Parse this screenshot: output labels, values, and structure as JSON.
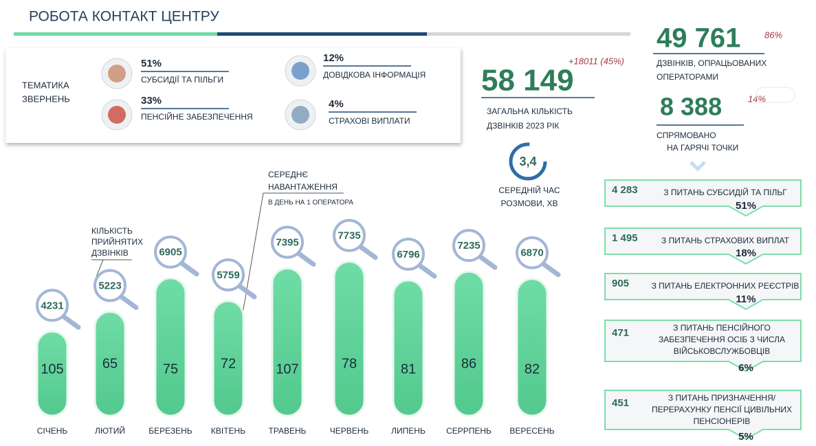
{
  "header": {
    "title": "РОБОТА КОНТАКТ ЦЕНТРУ"
  },
  "topics": {
    "label": [
      "ТЕМАТИКА",
      "ЗВЕРНЕНЬ"
    ],
    "items": [
      {
        "percent": "51%",
        "label": "СУБСИДІЇ ТА ПІЛЬГИ"
      },
      {
        "percent": "33%",
        "label": "ПЕНСІЙНЕ ЗАБЕЗПЕЧЕННЯ"
      },
      {
        "percent": "12%",
        "label": "ДОВІДКОВА ІНФОРМАЦІЯ"
      },
      {
        "percent": "4%",
        "label": "СТРАХОВІ ВИПЛАТИ"
      }
    ]
  },
  "total": {
    "change": "+18011 (45%)",
    "value": "58 149",
    "caption": [
      "ЗАГАЛЬНА КІЛЬКІСТЬ",
      "ДЗВІНКІВ  2023 РІК"
    ]
  },
  "avg_talk": {
    "value": "3,4",
    "caption": [
      "СЕРЕДНІЙ ЧАС",
      "РОЗМОВИ, ХВ"
    ]
  },
  "operators": {
    "value": "49 761",
    "share": "86%",
    "caption": [
      "ДЗВІНКІВ,  ОПРАЦЬОВАНИХ",
      "ОПЕРАТОРАМИ"
    ]
  },
  "hotspots": {
    "value": "8 388",
    "share": "14%",
    "caption": [
      "СПРЯМОВАНО",
      "НА ГАРЯЧІ ТОЧКИ"
    ],
    "items": [
      {
        "value": "4 283",
        "text": [
          "З ПИТАНЬ СУБСИДІЙ ТА ПІЛЬГ"
        ],
        "share": "51%"
      },
      {
        "value": "1 495",
        "text": [
          "З ПИТАНЬ СТРАХОВИХ ВИПЛАТ"
        ],
        "share": "18%"
      },
      {
        "value": "905",
        "text": [
          "З ПИТАНЬ ЕЛЕКТРОННИХ РЕЄСТРІВ"
        ],
        "share": "11%"
      },
      {
        "value": "471",
        "text": [
          "З ПИТАНЬ ПЕНСІЙНОГО",
          "ЗАБЕЗПЕЧЕННЯ ОСІБ З ЧИСЛА",
          "ВІЙСЬКОВСЛУЖБОВЦІВ"
        ],
        "share": "6%"
      },
      {
        "value": "451",
        "text": [
          "З ПИТАНЬ ПРИЗНАЧЕННЯ/",
          "ПЕРЕРАХУНКУ ПЕНСІЇ ЦИВІЛЬНИХ",
          "ПЕНСІОНЕРІВ"
        ],
        "share": "5%"
      }
    ]
  },
  "monthly": {
    "calls_label": [
      "КІЛЬКІСТЬ",
      "ПРИЙНЯТИХ",
      "ДЗВІНКІВ"
    ],
    "load_label": [
      "СЕРЕДНЄ",
      "НАВАНТАЖЕННЯ",
      "В ДЕНЬ НА 1 ОПЕРАТОРА"
    ],
    "months": [
      "СІЧЕНЬ",
      "ЛЮТИЙ",
      "БЕРЕЗЕНЬ",
      "КВІТЕНЬ",
      "ТРАВЕНЬ",
      "ЧЕРВЕНЬ",
      "ЛИПЕНЬ",
      "СЕРРПЕНЬ",
      "ВЕРЕСЕНЬ"
    ],
    "calls": [
      4231,
      5223,
      6905,
      5759,
      7395,
      7735,
      6796,
      7235,
      6870
    ],
    "load": [
      105,
      65,
      75,
      72,
      107,
      78,
      81,
      86,
      82
    ]
  }
}
